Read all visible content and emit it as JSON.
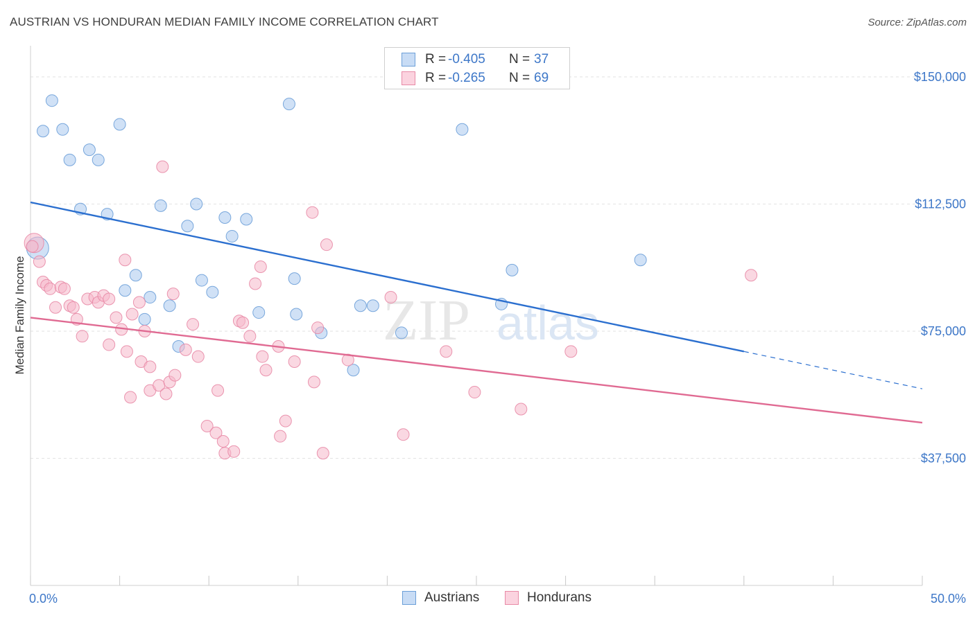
{
  "title": "AUSTRIAN VS HONDURAN MEDIAN FAMILY INCOME CORRELATION CHART",
  "source": "Source: ZipAtlas.com",
  "watermark": {
    "zip": "ZIP",
    "atlas": "atlas"
  },
  "legend_top": {
    "rows": [
      {
        "r_label": "R =",
        "r_value": "-0.405",
        "n_label": "N =",
        "n_value": "37",
        "color": "#a9c8ef"
      },
      {
        "r_label": "R =",
        "r_value": "-0.265",
        "n_label": "N =",
        "n_value": "69",
        "color": "#f5b8cb"
      }
    ]
  },
  "legend_bottom": [
    {
      "label": "Austrians",
      "color": "#a9c8ef"
    },
    {
      "label": "Hondurans",
      "color": "#f5b8cb"
    }
  ],
  "chart_data": {
    "type": "scatter",
    "title": "AUSTRIAN VS HONDURAN MEDIAN FAMILY INCOME CORRELATION CHART",
    "ylabel": "Median Family Income",
    "xlim": [
      0,
      50
    ],
    "ylim": [
      0,
      160000
    ],
    "x_tick_labels": [
      "0.0%",
      "50.0%"
    ],
    "y_ticks": [
      37500,
      75000,
      112500,
      150000
    ],
    "y_tick_labels": [
      "$37,500",
      "$75,000",
      "$112,500",
      "$150,000"
    ],
    "grid": true,
    "legend": "top-center",
    "series": [
      {
        "name": "Austrians",
        "color": "#a9c8ef",
        "stroke": "#6b9fd8",
        "line_color": "#2b6fcf",
        "trend": {
          "x_start": 0,
          "y_start": 113000,
          "x_solid_end": 40,
          "y_solid_end": 69000,
          "x_end": 50,
          "y_end": 58000
        },
        "points": [
          [
            1.2,
            143000
          ],
          [
            0.7,
            134000
          ],
          [
            1.8,
            134500
          ],
          [
            5.0,
            136000
          ],
          [
            14.5,
            142000
          ],
          [
            24.2,
            134500
          ],
          [
            2.2,
            125500
          ],
          [
            3.3,
            128500
          ],
          [
            3.8,
            125500
          ],
          [
            2.8,
            111000
          ],
          [
            4.3,
            109500
          ],
          [
            7.3,
            112000
          ],
          [
            9.3,
            112500
          ],
          [
            8.8,
            106000
          ],
          [
            10.9,
            108500
          ],
          [
            12.1,
            108000
          ],
          [
            11.3,
            103000
          ],
          [
            0.4,
            99500
          ],
          [
            5.9,
            91500
          ],
          [
            9.6,
            90000
          ],
          [
            14.8,
            90500
          ],
          [
            5.3,
            87000
          ],
          [
            10.2,
            86500
          ],
          [
            6.7,
            85000
          ],
          [
            7.8,
            82500
          ],
          [
            12.8,
            80500
          ],
          [
            14.9,
            80000
          ],
          [
            18.5,
            82500
          ],
          [
            19.2,
            82500
          ],
          [
            6.4,
            78500
          ],
          [
            16.3,
            74500
          ],
          [
            20.8,
            74500
          ],
          [
            8.3,
            70500
          ],
          [
            18.1,
            63500
          ],
          [
            26.4,
            83000
          ],
          [
            27.0,
            93000
          ],
          [
            34.2,
            96000
          ]
        ]
      },
      {
        "name": "Hondurans",
        "color": "#f5b8cb",
        "stroke": "#e88aa6",
        "line_color": "#e06a92",
        "trend": {
          "x_start": 0,
          "y_start": 79000,
          "x_solid_end": 50,
          "y_solid_end": 48000,
          "x_end": 50,
          "y_end": 48000
        },
        "points": [
          [
            0.2,
            101000
          ],
          [
            0.5,
            95500
          ],
          [
            0.7,
            89500
          ],
          [
            0.9,
            88500
          ],
          [
            1.1,
            87500
          ],
          [
            1.7,
            88000
          ],
          [
            1.9,
            87500
          ],
          [
            1.4,
            82000
          ],
          [
            2.2,
            82500
          ],
          [
            2.4,
            82000
          ],
          [
            2.6,
            78500
          ],
          [
            3.2,
            84500
          ],
          [
            3.6,
            85000
          ],
          [
            3.8,
            83500
          ],
          [
            4.1,
            85500
          ],
          [
            4.4,
            84500
          ],
          [
            2.9,
            73500
          ],
          [
            4.4,
            71000
          ],
          [
            5.3,
            96000
          ],
          [
            4.8,
            79000
          ],
          [
            5.1,
            75500
          ],
          [
            5.4,
            69000
          ],
          [
            5.7,
            80000
          ],
          [
            6.1,
            83500
          ],
          [
            6.4,
            75000
          ],
          [
            6.2,
            66000
          ],
          [
            6.7,
            64500
          ],
          [
            5.6,
            55500
          ],
          [
            6.7,
            57500
          ],
          [
            7.2,
            59000
          ],
          [
            7.6,
            56500
          ],
          [
            7.8,
            60000
          ],
          [
            8.1,
            62000
          ],
          [
            8.0,
            86000
          ],
          [
            9.1,
            77000
          ],
          [
            8.7,
            69500
          ],
          [
            9.4,
            67500
          ],
          [
            7.4,
            123500
          ],
          [
            9.9,
            47000
          ],
          [
            10.4,
            45000
          ],
          [
            10.8,
            42500
          ],
          [
            10.5,
            57500
          ],
          [
            10.9,
            39000
          ],
          [
            11.4,
            39500
          ],
          [
            11.7,
            78000
          ],
          [
            11.9,
            77500
          ],
          [
            12.3,
            73500
          ],
          [
            12.6,
            89000
          ],
          [
            12.9,
            94000
          ],
          [
            13.0,
            67500
          ],
          [
            13.2,
            63500
          ],
          [
            13.9,
            70500
          ],
          [
            14.0,
            44000
          ],
          [
            14.3,
            48500
          ],
          [
            14.8,
            66000
          ],
          [
            15.9,
            60000
          ],
          [
            16.1,
            76000
          ],
          [
            16.4,
            39000
          ],
          [
            15.8,
            110000
          ],
          [
            16.6,
            100500
          ],
          [
            17.8,
            66500
          ],
          [
            20.2,
            85000
          ],
          [
            20.9,
            44500
          ],
          [
            23.3,
            69000
          ],
          [
            24.9,
            57000
          ],
          [
            27.5,
            52000
          ],
          [
            30.3,
            69000
          ],
          [
            40.4,
            91500
          ],
          [
            0.1,
            100000
          ]
        ]
      }
    ]
  }
}
